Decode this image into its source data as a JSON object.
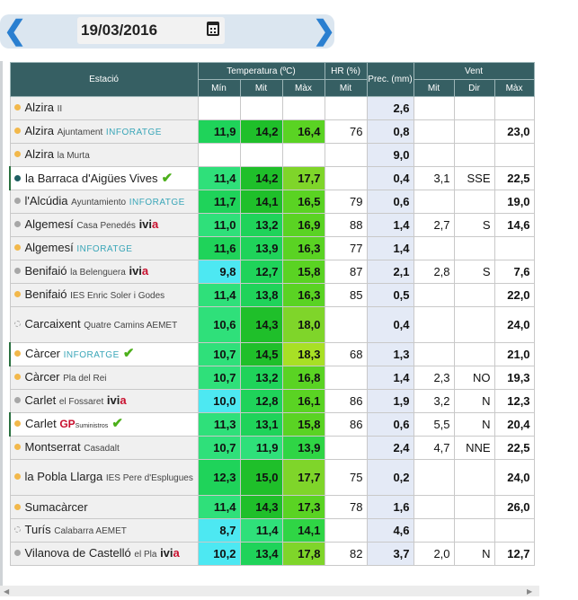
{
  "date_nav": {
    "date": "19/03/2016",
    "prev_icon": "❮",
    "next_icon": "❯"
  },
  "headers": {
    "station": "Estació",
    "temperature": "Temperatura (ºC)",
    "humidity": "HR (%)",
    "precip": "Prec. (mm)",
    "wind": "Vent",
    "min": "Mín",
    "mit": "Mit",
    "max": "Màx",
    "hr_mit": "Mit",
    "w_mit": "Mit",
    "w_dir": "Dir",
    "w_max": "Màx"
  },
  "rows": [
    {
      "name": "Alzira",
      "sub": "II",
      "tmin": "",
      "tmit": "",
      "tmax": "",
      "hr": "",
      "prec": "2,6",
      "wmit": "",
      "wdir": "",
      "wmax": ""
    },
    {
      "name": "Alzira",
      "sub": "Ajuntament",
      "brand": "INFORATGE",
      "tmin": "11,9",
      "tmit": "14,2",
      "tmax": "16,4",
      "hr": "76",
      "prec": "0,8",
      "wmit": "",
      "wdir": "",
      "wmax": "23,0"
    },
    {
      "name": "Alzira",
      "sub": "la Murta",
      "tmin": "",
      "tmit": "",
      "tmax": "",
      "hr": "",
      "prec": "9,0",
      "wmit": "",
      "wdir": "",
      "wmax": ""
    },
    {
      "name": "la Barraca d'Aigües Vives",
      "tmin": "11,4",
      "tmit": "14,2",
      "tmax": "17,7",
      "hr": "",
      "prec": "0,4",
      "wmit": "3,1",
      "wdir": "SSE",
      "wmax": "22,5"
    },
    {
      "name": "l'Alcúdia",
      "sub": "Ayuntamiento",
      "brand": "INFORATGE",
      "tmin": "11,7",
      "tmit": "14,1",
      "tmax": "16,5",
      "hr": "79",
      "prec": "0,6",
      "wmit": "",
      "wdir": "",
      "wmax": "19,0"
    },
    {
      "name": "Algemesí",
      "sub": "Casa Penedés",
      "brand": "ivia",
      "tmin": "11,0",
      "tmit": "13,2",
      "tmax": "16,9",
      "hr": "88",
      "prec": "1,4",
      "wmit": "2,7",
      "wdir": "S",
      "wmax": "14,6"
    },
    {
      "name": "Algemesí",
      "brand": "INFORATGE",
      "tmin": "11,6",
      "tmit": "13,9",
      "tmax": "16,3",
      "hr": "77",
      "prec": "1,4",
      "wmit": "",
      "wdir": "",
      "wmax": ""
    },
    {
      "name": "Benifaió",
      "sub": "la Belenguera",
      "brand": "ivia",
      "tmin": "9,8",
      "tmit": "12,7",
      "tmax": "15,8",
      "hr": "87",
      "prec": "2,1",
      "wmit": "2,8",
      "wdir": "S",
      "wmax": "7,6"
    },
    {
      "name": "Benifaió",
      "sub": "IES Enric Soler i Godes",
      "tmin": "11,4",
      "tmit": "13,8",
      "tmax": "16,3",
      "hr": "85",
      "prec": "0,5",
      "wmit": "",
      "wdir": "",
      "wmax": "22,0"
    },
    {
      "name": "Carcaixent",
      "sub": "Quatre Camins AEMET",
      "tmin": "10,6",
      "tmit": "14,3",
      "tmax": "18,0",
      "hr": "",
      "prec": "0,4",
      "wmit": "",
      "wdir": "",
      "wmax": "24,0"
    },
    {
      "name": "Càrcer",
      "brand": "INFORATGE",
      "tmin": "10,7",
      "tmit": "14,5",
      "tmax": "18,3",
      "hr": "68",
      "prec": "1,3",
      "wmit": "",
      "wdir": "",
      "wmax": "21,0"
    },
    {
      "name": "Càrcer",
      "sub": "Pla del Rei",
      "tmin": "10,7",
      "tmit": "13,2",
      "tmax": "16,8",
      "hr": "",
      "prec": "1,4",
      "wmit": "2,3",
      "wdir": "NO",
      "wmax": "19,3"
    },
    {
      "name": "Carlet",
      "sub": "el Fossaret",
      "brand": "ivia",
      "tmin": "10,0",
      "tmit": "12,8",
      "tmax": "16,1",
      "hr": "86",
      "prec": "1,9",
      "wmit": "3,2",
      "wdir": "N",
      "wmax": "12,3"
    },
    {
      "name": "Carlet",
      "brand": "GP",
      "brand2": "Suministros",
      "tmin": "11,3",
      "tmit": "13,1",
      "tmax": "15,8",
      "hr": "86",
      "prec": "0,6",
      "wmit": "5,5",
      "wdir": "N",
      "wmax": "20,4"
    },
    {
      "name": "Montserrat",
      "sub": "Casadalt",
      "tmin": "10,7",
      "tmit": "11,9",
      "tmax": "13,9",
      "hr": "",
      "prec": "2,4",
      "wmit": "4,7",
      "wdir": "NNE",
      "wmax": "22,5"
    },
    {
      "name": "la Pobla Llarga",
      "sub": "IES Pere d'Esplugues",
      "tmin": "12,3",
      "tmit": "15,0",
      "tmax": "17,7",
      "hr": "75",
      "prec": "0,2",
      "wmit": "",
      "wdir": "",
      "wmax": "24,0"
    },
    {
      "name": "Sumacàrcer",
      "tmin": "11,4",
      "tmit": "14,3",
      "tmax": "17,3",
      "hr": "78",
      "prec": "1,6",
      "wmit": "",
      "wdir": "",
      "wmax": "26,0"
    },
    {
      "name": "Turís",
      "sub": "Calabarra AEMET",
      "tmin": "8,7",
      "tmit": "11,4",
      "tmax": "14,1",
      "hr": "",
      "prec": "4,6",
      "wmit": "",
      "wdir": "",
      "wmax": ""
    },
    {
      "name": "Vilanova de Castelló",
      "sub": "el Pla",
      "brand": "ivia",
      "tmin": "10,2",
      "tmit": "13,4",
      "tmax": "17,8",
      "hr": "82",
      "prec": "3,7",
      "wmit": "2,0",
      "wdir": "N",
      "wmax": "12,7"
    }
  ],
  "colors": {
    "header": "#365f63",
    "precip_bg": "#e4eaf6",
    "station_bg": "#f0f0f0",
    "check": "#4caf1a",
    "accent": "#2a7fd0"
  }
}
